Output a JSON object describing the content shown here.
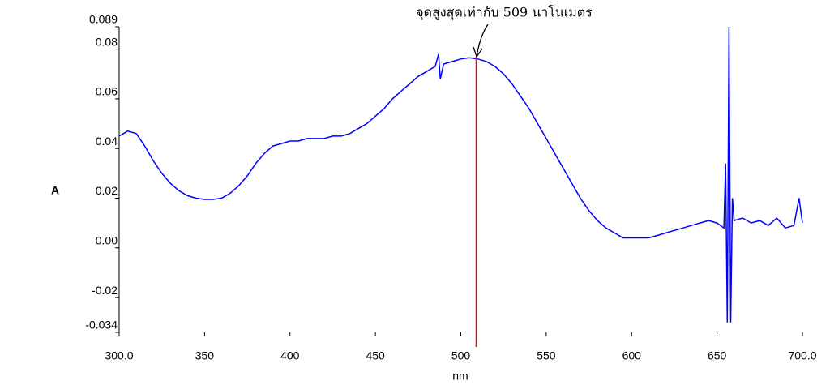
{
  "chart_data": {
    "type": "line",
    "annotation": "จุดสูงสุดเท่ากับ 509 นาโนเมตร",
    "xlabel": "nm",
    "ylabel": "A",
    "x": [
      300,
      305,
      310,
      315,
      320,
      325,
      330,
      335,
      340,
      345,
      350,
      355,
      360,
      365,
      370,
      375,
      380,
      385,
      390,
      395,
      400,
      405,
      410,
      415,
      420,
      425,
      430,
      435,
      440,
      445,
      450,
      455,
      460,
      465,
      470,
      475,
      480,
      485,
      487,
      488,
      490,
      495,
      500,
      505,
      510,
      515,
      520,
      525,
      530,
      535,
      540,
      545,
      550,
      555,
      560,
      565,
      570,
      575,
      580,
      585,
      590,
      595,
      600,
      605,
      610,
      615,
      620,
      625,
      630,
      635,
      640,
      645,
      650,
      654,
      655,
      656,
      657,
      658,
      659,
      660,
      665,
      670,
      675,
      680,
      685,
      690,
      695,
      698,
      700
    ],
    "values": [
      0.045,
      0.047,
      0.046,
      0.041,
      0.035,
      0.03,
      0.026,
      0.023,
      0.021,
      0.02,
      0.0195,
      0.0195,
      0.02,
      0.022,
      0.025,
      0.029,
      0.034,
      0.038,
      0.041,
      0.042,
      0.043,
      0.043,
      0.044,
      0.044,
      0.044,
      0.045,
      0.045,
      0.046,
      0.048,
      0.05,
      0.053,
      0.056,
      0.06,
      0.063,
      0.066,
      0.069,
      0.071,
      0.073,
      0.078,
      0.068,
      0.074,
      0.075,
      0.076,
      0.0765,
      0.076,
      0.075,
      0.073,
      0.07,
      0.066,
      0.061,
      0.056,
      0.05,
      0.044,
      0.038,
      0.032,
      0.026,
      0.02,
      0.015,
      0.011,
      0.008,
      0.006,
      0.004,
      0.004,
      0.004,
      0.004,
      0.005,
      0.006,
      0.007,
      0.008,
      0.009,
      0.01,
      0.011,
      0.01,
      0.008,
      0.034,
      -0.03,
      0.089,
      -0.03,
      0.02,
      0.011,
      0.012,
      0.01,
      0.011,
      0.009,
      0.012,
      0.008,
      0.009,
      0.02,
      0.01
    ],
    "color": "#0000ff",
    "vline": {
      "x": 509,
      "color": "#ff0000"
    },
    "xlim": [
      300,
      700
    ],
    "xticks": [
      {
        "value": 300,
        "label": "300.0"
      },
      350,
      400,
      450,
      500,
      550,
      600,
      650,
      {
        "value": 700,
        "label": "700.0"
      }
    ],
    "ylim": [
      -0.034,
      0.089
    ],
    "yticks": [
      0.089,
      0.08,
      0.06,
      0.04,
      0.02,
      {
        "value": 0,
        "label": "0.00"
      },
      -0.02,
      -0.034
    ]
  }
}
